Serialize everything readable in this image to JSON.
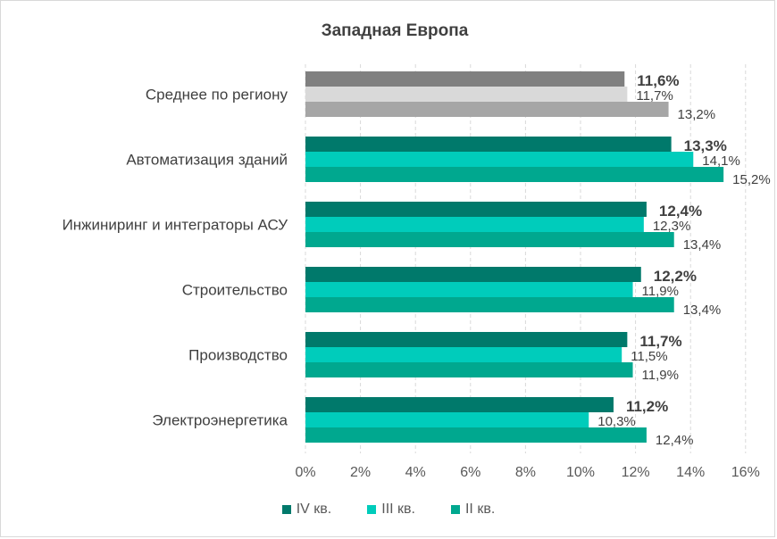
{
  "chart_data": {
    "type": "bar",
    "orientation": "horizontal",
    "title": "Западная Европа",
    "categories": [
      "Среднее по региону",
      "Автоматизация зданий",
      "Инжиниринг и интеграторы АСУ",
      "Строительство",
      "Производство",
      "Электроэнергетика"
    ],
    "series": [
      {
        "name": "IV кв.",
        "values": [
          11.6,
          13.3,
          12.4,
          12.2,
          11.7,
          11.2
        ],
        "labels": [
          "11,6%",
          "13,3%",
          "12,4%",
          "12,2%",
          "11,7%",
          "11,2%"
        ],
        "color": "#00796b",
        "highlight_color": "#808080"
      },
      {
        "name": "III кв.",
        "values": [
          11.7,
          14.1,
          12.3,
          11.9,
          11.5,
          10.3
        ],
        "labels": [
          "11,7%",
          "14,1%",
          "12,3%",
          "11,9%",
          "11,5%",
          "10,3%"
        ],
        "color": "#00ccbb",
        "highlight_color": "#d9d9d9"
      },
      {
        "name": "II кв.",
        "values": [
          13.2,
          15.2,
          13.4,
          13.4,
          11.9,
          12.4
        ],
        "labels": [
          "13,2%",
          "15,2%",
          "13,4%",
          "13,4%",
          "11,9%",
          "12,4%"
        ],
        "color": "#00a88f",
        "highlight_color": "#a6a6a6"
      }
    ],
    "xlim": [
      0,
      16
    ],
    "x_ticks": [
      "0%",
      "2%",
      "4%",
      "6%",
      "8%",
      "10%",
      "12%",
      "14%",
      "16%"
    ],
    "grid": "vertical-dashed",
    "legend_position": "bottom"
  }
}
